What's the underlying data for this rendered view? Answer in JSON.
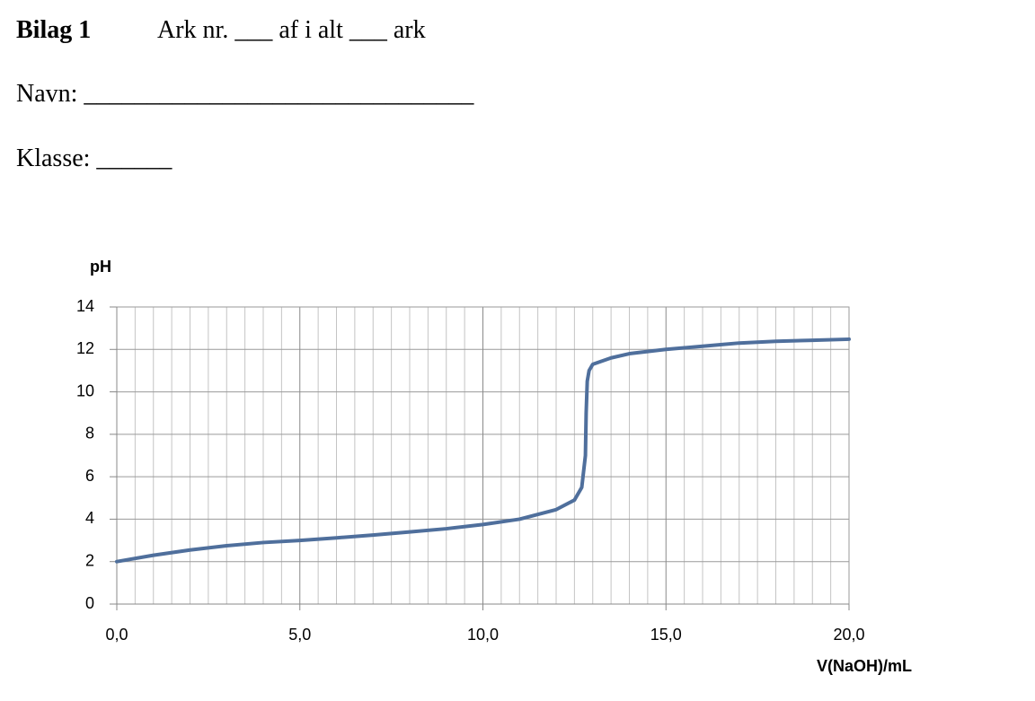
{
  "header": {
    "title": "Bilag 1",
    "sheet": "Ark nr. ___ af i alt ___ ark"
  },
  "fields": {
    "name": "Navn: _______________________________",
    "class": "Klasse: ______"
  },
  "chart_data": {
    "type": "line",
    "ylabel": "pH",
    "xlabel": "V(NaOH)/mL",
    "x": [
      0,
      1,
      2,
      3,
      4,
      5,
      6,
      7,
      8,
      9,
      10,
      11,
      12,
      12.5,
      12.7,
      12.8,
      12.82,
      12.85,
      12.9,
      13,
      13.5,
      14,
      15,
      16,
      17,
      18,
      19,
      20
    ],
    "values": [
      2.0,
      2.3,
      2.55,
      2.75,
      2.9,
      3.0,
      3.12,
      3.25,
      3.4,
      3.55,
      3.75,
      4.0,
      4.45,
      4.9,
      5.5,
      7,
      9,
      10.5,
      11,
      11.3,
      11.6,
      11.8,
      12.0,
      12.15,
      12.3,
      12.38,
      12.43,
      12.48
    ],
    "color": "#4f6f9c",
    "xlim": [
      0,
      20
    ],
    "ylim": [
      0,
      14
    ],
    "xticks": [
      {
        "value": 0,
        "label": "0,0"
      },
      {
        "value": 5,
        "label": "5,0"
      },
      {
        "value": 10,
        "label": "10,0"
      },
      {
        "value": 15,
        "label": "15,0"
      },
      {
        "value": 20,
        "label": "20,0"
      }
    ],
    "yticks": [
      0,
      2,
      4,
      6,
      8,
      10,
      12,
      14
    ],
    "grid": true,
    "minor_x_divisions": 10
  }
}
